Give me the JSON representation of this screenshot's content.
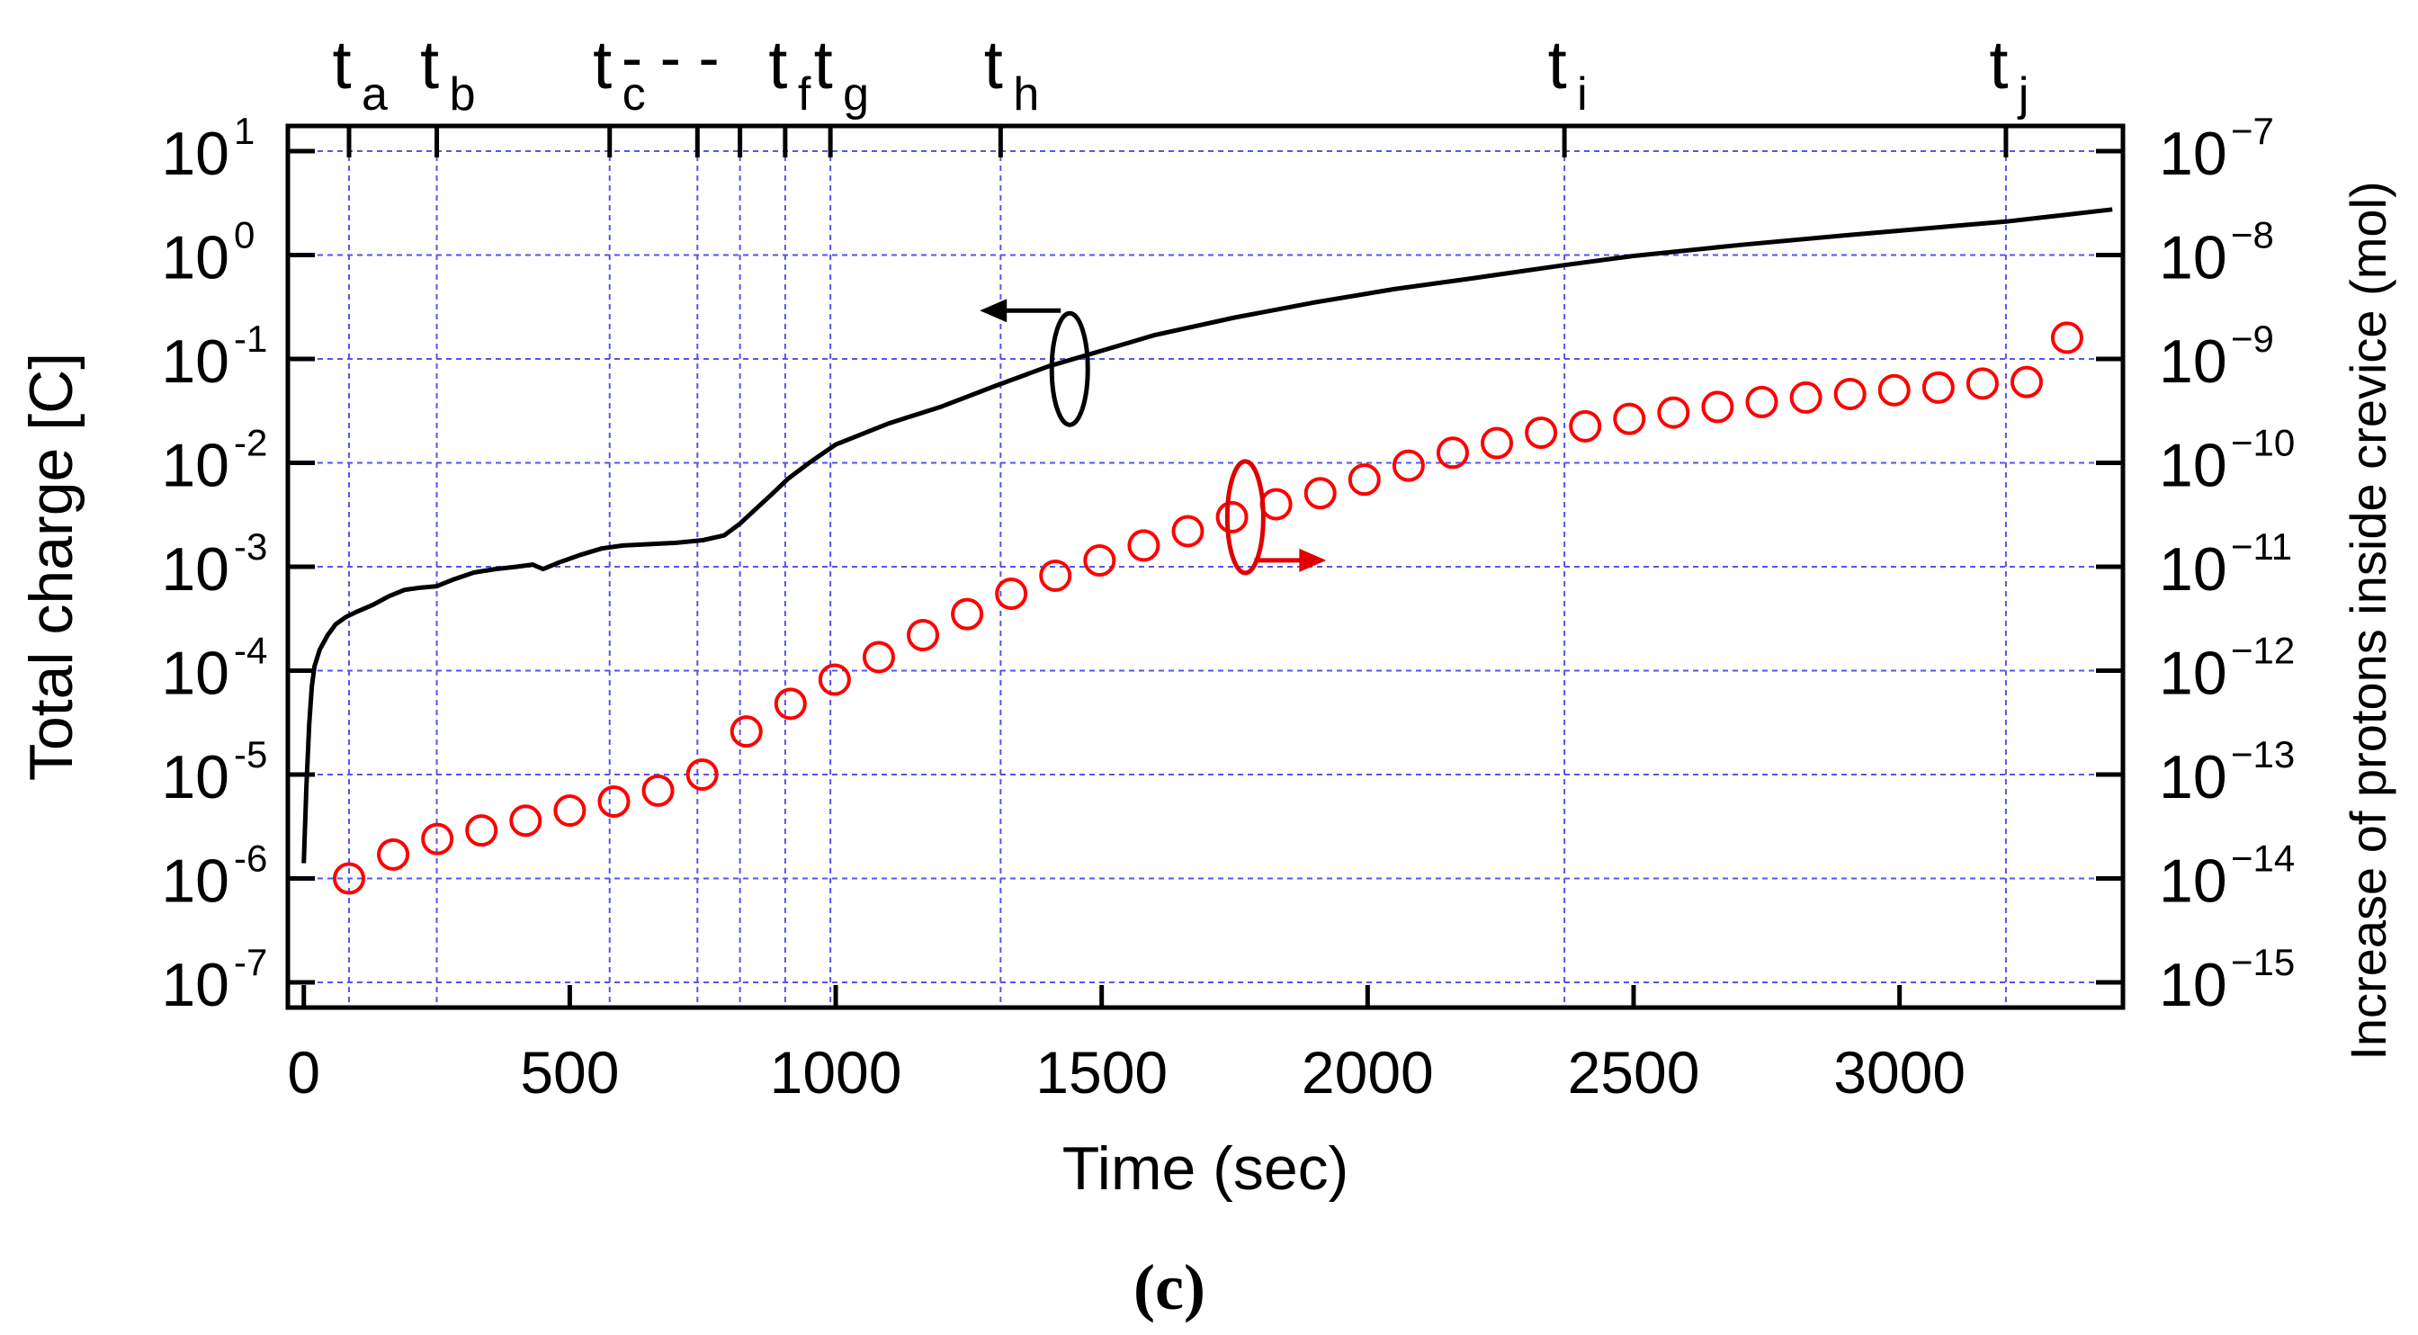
{
  "chart_data": {
    "type": "line",
    "title": "",
    "caption": "(c)",
    "xlabel": "Time (sec)",
    "ylabel_left": "Total charge [C]",
    "ylabel_right": "Increase of protons inside crevice (mol)",
    "xlim": [
      -30,
      3420
    ],
    "x_ticks": [
      0,
      500,
      1000,
      1500,
      2000,
      2500,
      3000
    ],
    "x_tick_labels": [
      "0",
      "500",
      "1000",
      "1500",
      "2000",
      "2500",
      "3000"
    ],
    "y_left": {
      "scale": "log",
      "lim": [
        1e-07,
        10
      ],
      "ticks": [
        {
          "value": 10,
          "base": "10",
          "exp": "1"
        },
        {
          "value": 1,
          "base": "10",
          "exp": "0"
        },
        {
          "value": 0.1,
          "base": "10",
          "exp": "-1"
        },
        {
          "value": 0.01,
          "base": "10",
          "exp": "-2"
        },
        {
          "value": 0.001,
          "base": "10",
          "exp": "-3"
        },
        {
          "value": 0.0001,
          "base": "10",
          "exp": "-4"
        },
        {
          "value": 1e-05,
          "base": "10",
          "exp": "-5"
        },
        {
          "value": 1e-06,
          "base": "10",
          "exp": "-6"
        },
        {
          "value": 1e-07,
          "base": "10",
          "exp": "-7"
        }
      ]
    },
    "y_right": {
      "scale": "log",
      "lim": [
        1e-15,
        1e-07
      ],
      "ticks": [
        {
          "value": 1e-07,
          "base": "10",
          "exp": "−7"
        },
        {
          "value": 1e-08,
          "base": "10",
          "exp": "−8"
        },
        {
          "value": 1e-09,
          "base": "10",
          "exp": "−9"
        },
        {
          "value": 1e-10,
          "base": "10",
          "exp": "−10"
        },
        {
          "value": 1e-11,
          "base": "10",
          "exp": "−11"
        },
        {
          "value": 1e-12,
          "base": "10",
          "exp": "−12"
        },
        {
          "value": 1e-13,
          "base": "10",
          "exp": "−13"
        },
        {
          "value": 1e-14,
          "base": "10",
          "exp": "−14"
        },
        {
          "value": 1e-15,
          "base": "10",
          "exp": "−15"
        }
      ]
    },
    "grid": true,
    "time_markers": [
      {
        "x": 85,
        "label": "t",
        "sub": "a"
      },
      {
        "x": 250,
        "label": "t",
        "sub": "b"
      },
      {
        "x": 575,
        "label": "t",
        "sub": "c"
      },
      {
        "x": 740,
        "label": "",
        "sub": ""
      },
      {
        "x": 820,
        "label": "",
        "sub": ""
      },
      {
        "x": 905,
        "label": "t",
        "sub": "f"
      },
      {
        "x": 990,
        "label": "t",
        "sub": "g"
      },
      {
        "x": 1310,
        "label": "t",
        "sub": "h"
      },
      {
        "x": 2370,
        "label": "t",
        "sub": "i"
      },
      {
        "x": 3200,
        "label": "t",
        "sub": "j"
      }
    ],
    "marker_connector": "- - -",
    "series": [
      {
        "name": "Total charge [C]",
        "axis": "left",
        "style": "line",
        "color": "#000000",
        "points": [
          [
            0,
            1.4e-06
          ],
          [
            5,
            8e-06
          ],
          [
            10,
            3e-05
          ],
          [
            15,
            7e-05
          ],
          [
            20,
            0.00011
          ],
          [
            30,
            0.00016
          ],
          [
            45,
            0.00022
          ],
          [
            60,
            0.00028
          ],
          [
            80,
            0.00033
          ],
          [
            100,
            0.00037
          ],
          [
            130,
            0.00043
          ],
          [
            160,
            0.00052
          ],
          [
            190,
            0.0006
          ],
          [
            220,
            0.00063
          ],
          [
            250,
            0.00065
          ],
          [
            280,
            0.00075
          ],
          [
            320,
            0.00088
          ],
          [
            360,
            0.00095
          ],
          [
            400,
            0.001
          ],
          [
            430,
            0.00105
          ],
          [
            450,
            0.00095
          ],
          [
            480,
            0.0011
          ],
          [
            520,
            0.0013
          ],
          [
            560,
            0.0015
          ],
          [
            600,
            0.0016
          ],
          [
            650,
            0.00165
          ],
          [
            700,
            0.0017
          ],
          [
            750,
            0.0018
          ],
          [
            790,
            0.002
          ],
          [
            820,
            0.0026
          ],
          [
            850,
            0.0036
          ],
          [
            880,
            0.005
          ],
          [
            910,
            0.007
          ],
          [
            950,
            0.01
          ],
          [
            1000,
            0.015
          ],
          [
            1100,
            0.024
          ],
          [
            1200,
            0.035
          ],
          [
            1300,
            0.055
          ],
          [
            1400,
            0.085
          ],
          [
            1500,
            0.12
          ],
          [
            1600,
            0.17
          ],
          [
            1750,
            0.25
          ],
          [
            1900,
            0.35
          ],
          [
            2050,
            0.47
          ],
          [
            2200,
            0.6
          ],
          [
            2370,
            0.8
          ],
          [
            2500,
            0.98
          ],
          [
            2700,
            1.25
          ],
          [
            2900,
            1.55
          ],
          [
            3100,
            1.9
          ],
          [
            3200,
            2.1
          ],
          [
            3300,
            2.4
          ],
          [
            3400,
            2.75
          ]
        ]
      },
      {
        "name": "Increase of protons inside crevice (mol)",
        "axis": "right",
        "style": "open-circle",
        "color": "#ff0000",
        "points": [
          [
            85,
            1e-14
          ],
          [
            168,
            1.7e-14
          ],
          [
            251,
            2.4e-14
          ],
          [
            334,
            2.9e-14
          ],
          [
            417,
            3.6e-14
          ],
          [
            500,
            4.5e-14
          ],
          [
            583,
            5.5e-14
          ],
          [
            666,
            7e-14
          ],
          [
            749,
            1e-13
          ],
          [
            832,
            2.6e-13
          ],
          [
            915,
            4.8e-13
          ],
          [
            998,
            8.2e-13
          ],
          [
            1081,
            1.35e-12
          ],
          [
            1164,
            2.2e-12
          ],
          [
            1247,
            3.5e-12
          ],
          [
            1330,
            5.5e-12
          ],
          [
            1413,
            8.2e-12
          ],
          [
            1496,
            1.15e-11
          ],
          [
            1579,
            1.6e-11
          ],
          [
            1662,
            2.2e-11
          ],
          [
            1745,
            3e-11
          ],
          [
            1828,
            4e-11
          ],
          [
            1911,
            5.1e-11
          ],
          [
            1994,
            6.9e-11
          ],
          [
            2077,
            9.4e-11
          ],
          [
            2160,
            1.25e-10
          ],
          [
            2243,
            1.55e-10
          ],
          [
            2326,
            1.95e-10
          ],
          [
            2409,
            2.25e-10
          ],
          [
            2492,
            2.65e-10
          ],
          [
            2575,
            3.05e-10
          ],
          [
            2658,
            3.45e-10
          ],
          [
            2741,
            3.85e-10
          ],
          [
            2824,
            4.25e-10
          ],
          [
            2907,
            4.6e-10
          ],
          [
            2990,
            5e-10
          ],
          [
            3073,
            5.3e-10
          ],
          [
            3156,
            5.8e-10
          ],
          [
            3239,
            6e-10
          ],
          [
            3315,
            1.6e-09
          ]
        ]
      }
    ],
    "annotations": [
      {
        "type": "ellipse-arrow",
        "series": "Total charge [C]",
        "direction": "left"
      },
      {
        "type": "ellipse-arrow",
        "series": "Increase of protons inside crevice (mol)",
        "direction": "right"
      }
    ]
  }
}
